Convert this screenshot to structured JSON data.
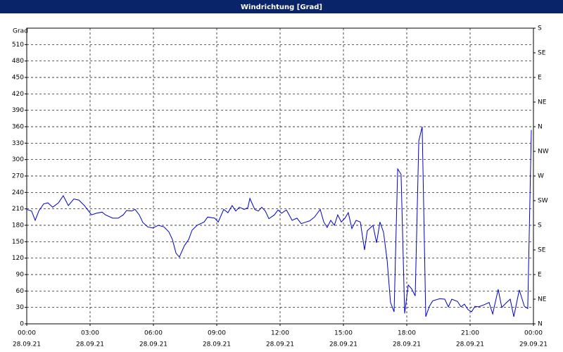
{
  "chart_data": {
    "type": "line",
    "title": "Windrichtung [Grad]",
    "y_label": "Grad",
    "xlim": [
      0,
      24
    ],
    "xticks": [
      {
        "value": 0,
        "label": "00:00"
      },
      {
        "value": 3,
        "label": "03:00"
      },
      {
        "value": 6,
        "label": "06:00"
      },
      {
        "value": 9,
        "label": "09:00"
      },
      {
        "value": 12,
        "label": "12:00"
      },
      {
        "value": 15,
        "label": "15:00"
      },
      {
        "value": 18,
        "label": "18:00"
      },
      {
        "value": 21,
        "label": "21:00"
      },
      {
        "value": 24,
        "label": "00:00"
      }
    ],
    "xtick_dates": [
      "28.09.21",
      "28.09.21",
      "28.09.21",
      "28.09.21",
      "28.09.21",
      "28.09.21",
      "28.09.21",
      "28.09.21",
      "29.09.21"
    ],
    "ylim": [
      0,
      540
    ],
    "yticks": [
      0,
      30,
      60,
      90,
      120,
      150,
      180,
      210,
      240,
      270,
      300,
      330,
      360,
      390,
      420,
      450,
      480,
      510
    ],
    "y2lim": [
      0,
      540
    ],
    "y2ticks": [
      {
        "value": 0,
        "label": "N"
      },
      {
        "value": 45,
        "label": "NE"
      },
      {
        "value": 90,
        "label": "E"
      },
      {
        "value": 135,
        "label": "SE"
      },
      {
        "value": 180,
        "label": "S"
      },
      {
        "value": 225,
        "label": "SW"
      },
      {
        "value": 270,
        "label": "W"
      },
      {
        "value": 315,
        "label": "NW"
      },
      {
        "value": 360,
        "label": "N"
      },
      {
        "value": 405,
        "label": "NE"
      },
      {
        "value": 450,
        "label": "E"
      },
      {
        "value": 495,
        "label": "SE"
      },
      {
        "value": 540,
        "label": "S"
      }
    ],
    "grid": true,
    "series": [
      {
        "name": "Windrichtung",
        "color": "#0000cc",
        "x": [
          0,
          0.23,
          0.4,
          0.57,
          0.8,
          1.0,
          1.23,
          1.5,
          1.73,
          1.97,
          2.23,
          2.47,
          2.73,
          3.07,
          3.3,
          3.57,
          3.73,
          4.07,
          4.33,
          4.57,
          4.73,
          4.97,
          5.13,
          5.33,
          5.5,
          5.73,
          5.97,
          6.23,
          6.5,
          6.73,
          6.9,
          7.07,
          7.23,
          7.47,
          7.67,
          7.83,
          8.07,
          8.4,
          8.57,
          8.9,
          9.07,
          9.33,
          9.53,
          9.73,
          9.9,
          10.07,
          10.3,
          10.47,
          10.57,
          10.8,
          10.97,
          11.13,
          11.3,
          11.47,
          11.73,
          11.9,
          12.07,
          12.3,
          12.57,
          12.8,
          13.0,
          13.23,
          13.4,
          13.63,
          13.9,
          14.07,
          14.23,
          14.4,
          14.57,
          14.73,
          14.9,
          15.07,
          15.23,
          15.4,
          15.6,
          15.8,
          16.0,
          16.13,
          16.4,
          16.57,
          16.73,
          16.9,
          17.07,
          17.23,
          17.4,
          17.57,
          17.73,
          17.9,
          18.07,
          18.23,
          18.4,
          18.57,
          18.73,
          18.9,
          19.07,
          19.23,
          19.57,
          19.8,
          19.97,
          20.13,
          20.4,
          20.57,
          20.73,
          20.9,
          21.07,
          21.23,
          21.4,
          21.67,
          21.9,
          22.07,
          22.33,
          22.5,
          22.73,
          22.9,
          23.07,
          23.33,
          23.57,
          23.73,
          23.9
        ],
        "values": [
          209,
          206,
          189,
          206,
          219,
          221,
          213,
          221,
          234,
          216,
          228,
          226,
          216,
          199,
          202,
          204,
          199,
          193,
          193,
          199,
          207,
          206,
          209,
          199,
          185,
          177,
          175,
          180,
          177,
          168,
          154,
          129,
          122,
          143,
          154,
          171,
          180,
          186,
          195,
          193,
          186,
          209,
          203,
          216,
          206,
          213,
          209,
          212,
          229,
          209,
          206,
          213,
          206,
          192,
          199,
          208,
          202,
          208,
          189,
          193,
          183,
          186,
          188,
          195,
          209,
          186,
          176,
          189,
          180,
          199,
          186,
          193,
          203,
          174,
          189,
          186,
          135,
          170,
          180,
          148,
          186,
          167,
          116,
          39,
          22,
          283,
          273,
          19,
          71,
          64,
          51,
          334,
          360,
          13,
          32,
          42,
          46,
          45,
          31,
          45,
          41,
          31,
          36,
          26,
          22,
          32,
          31,
          35,
          39,
          18,
          63,
          30,
          39,
          45,
          13,
          62,
          32,
          28,
          354
        ]
      }
    ]
  }
}
